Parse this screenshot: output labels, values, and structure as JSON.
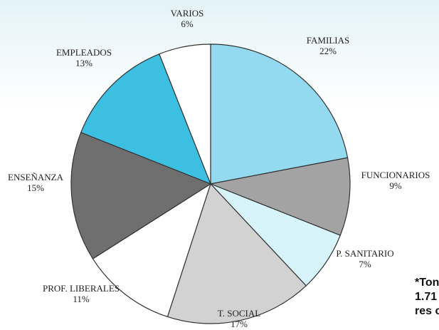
{
  "chart_data": {
    "type": "pie",
    "categories": [
      "FAMILIAS",
      "FUNCIONARIOS",
      "P. SANITARIO",
      "T. SOCIAL",
      "PROF. LIBERALES",
      "ENSEÑANZA",
      "EMPLEADOS",
      "VARIOS"
    ],
    "values": [
      22,
      9,
      7,
      17,
      11,
      15,
      13,
      6
    ],
    "value_labels": [
      "22%",
      "9%",
      "7%",
      "17%",
      "11%",
      "15%",
      "13%",
      "6%"
    ],
    "colors": [
      "#93daf0",
      "#a3a3a3",
      "#d8f4fb",
      "#d2d2d2",
      "#ffffff",
      "#6f6f6f",
      "#3dbfe2",
      "#ffffff"
    ],
    "annotations": [
      "*Ton",
      "1.71",
      "res c"
    ]
  }
}
